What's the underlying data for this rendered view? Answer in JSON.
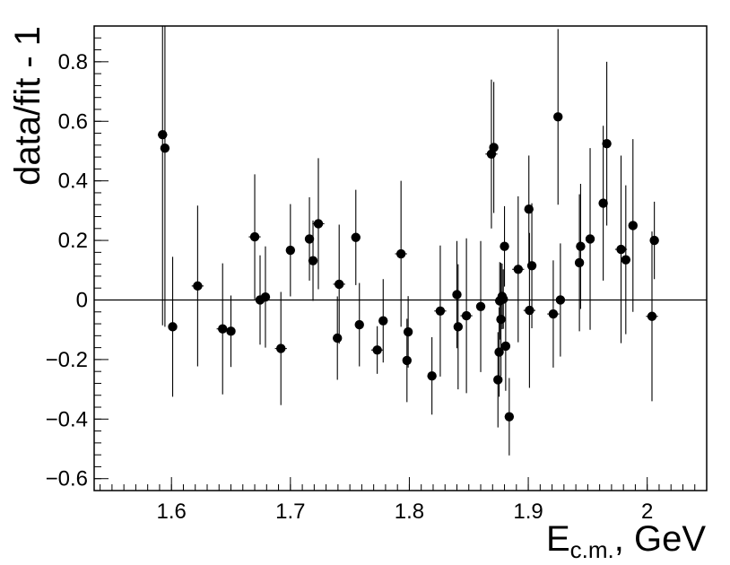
{
  "chart_data": {
    "type": "scatter",
    "title": "",
    "xlabel_main": "E",
    "xlabel_sub": "c.m.",
    "xlabel_rest": ", GeV",
    "ylabel": "data/fit - 1",
    "xlim": [
      1.535,
      2.05
    ],
    "ylim": [
      -0.64,
      0.92
    ],
    "grid": false,
    "reference_line_y": 0,
    "x_ticks": [
      {
        "value": 1.6,
        "label": "1.6"
      },
      {
        "value": 1.7,
        "label": "1.7"
      },
      {
        "value": 1.8,
        "label": "1.8"
      },
      {
        "value": 1.9,
        "label": "1.9"
      },
      {
        "value": 2.0,
        "label": "2"
      }
    ],
    "y_ticks": [
      {
        "value": -0.6,
        "label": "−0.6"
      },
      {
        "value": -0.4,
        "label": "−0.4"
      },
      {
        "value": -0.2,
        "label": "−0.2"
      },
      {
        "value": 0.0,
        "label": "0"
      },
      {
        "value": 0.2,
        "label": "0.2"
      },
      {
        "value": 0.4,
        "label": "0.4"
      },
      {
        "value": 0.6,
        "label": "0.6"
      },
      {
        "value": 0.8,
        "label": "0.8"
      }
    ],
    "x_minor_step": 0.01,
    "y_minor_step": 0.04,
    "points": [
      {
        "x": 1.5925,
        "y": 0.555,
        "yerr": 0.64,
        "xerr": 0.004
      },
      {
        "x": 1.5945,
        "y": 0.51,
        "yerr": 0.6,
        "xerr": 0.0
      },
      {
        "x": 1.601,
        "y": -0.09,
        "yerr": 0.235,
        "xerr": 0.0
      },
      {
        "x": 1.622,
        "y": 0.047,
        "yerr": 0.27,
        "xerr": 0.005
      },
      {
        "x": 1.643,
        "y": -0.097,
        "yerr": 0.22,
        "xerr": 0.005
      },
      {
        "x": 1.65,
        "y": -0.105,
        "yerr": 0.12,
        "xerr": 0.0
      },
      {
        "x": 1.67,
        "y": 0.212,
        "yerr": 0.21,
        "xerr": 0.005
      },
      {
        "x": 1.6745,
        "y": 0.0,
        "yerr": 0.15,
        "xerr": 0.0
      },
      {
        "x": 1.679,
        "y": 0.01,
        "yerr": 0.17,
        "xerr": 0.0
      },
      {
        "x": 1.692,
        "y": -0.163,
        "yerr": 0.19,
        "xerr": 0.005
      },
      {
        "x": 1.7,
        "y": 0.167,
        "yerr": 0.155,
        "xerr": 0.0
      },
      {
        "x": 1.716,
        "y": 0.205,
        "yerr": 0.14,
        "xerr": 0.0
      },
      {
        "x": 1.719,
        "y": 0.132,
        "yerr": 0.135,
        "xerr": 0.0
      },
      {
        "x": 1.7235,
        "y": 0.256,
        "yerr": 0.22,
        "xerr": 0.005
      },
      {
        "x": 1.7395,
        "y": -0.128,
        "yerr": 0.14,
        "xerr": 0.0
      },
      {
        "x": 1.741,
        "y": 0.053,
        "yerr": 0.2,
        "xerr": 0.005
      },
      {
        "x": 1.755,
        "y": 0.21,
        "yerr": 0.16,
        "xerr": 0.0
      },
      {
        "x": 1.758,
        "y": -0.083,
        "yerr": 0.14,
        "xerr": 0.0
      },
      {
        "x": 1.773,
        "y": -0.168,
        "yerr": 0.08,
        "xerr": 0.005
      },
      {
        "x": 1.778,
        "y": -0.07,
        "yerr": 0.14,
        "xerr": 0.0
      },
      {
        "x": 1.793,
        "y": 0.155,
        "yerr": 0.245,
        "xerr": 0.005
      },
      {
        "x": 1.798,
        "y": -0.203,
        "yerr": 0.14,
        "xerr": 0.0
      },
      {
        "x": 1.799,
        "y": -0.107,
        "yerr": 0.12,
        "xerr": 0.0
      },
      {
        "x": 1.819,
        "y": -0.255,
        "yerr": 0.13,
        "xerr": 0.0
      },
      {
        "x": 1.826,
        "y": -0.037,
        "yerr": 0.22,
        "xerr": 0.005
      },
      {
        "x": 1.84,
        "y": 0.018,
        "yerr": 0.18,
        "xerr": 0.0
      },
      {
        "x": 1.841,
        "y": -0.09,
        "yerr": 0.21,
        "xerr": 0.0
      },
      {
        "x": 1.848,
        "y": -0.053,
        "yerr": 0.26,
        "xerr": 0.005
      },
      {
        "x": 1.86,
        "y": -0.022,
        "yerr": 0.22,
        "xerr": 0.0
      },
      {
        "x": 1.869,
        "y": 0.49,
        "yerr": 0.25,
        "xerr": 0.005
      },
      {
        "x": 1.871,
        "y": 0.512,
        "yerr": 0.22,
        "xerr": 0.0
      },
      {
        "x": 1.8745,
        "y": -0.268,
        "yerr": 0.16,
        "xerr": 0.0
      },
      {
        "x": 1.8755,
        "y": -0.175,
        "yerr": 0.15,
        "xerr": 0.0
      },
      {
        "x": 1.876,
        "y": -0.003,
        "yerr": 0.13,
        "xerr": 0.004
      },
      {
        "x": 1.877,
        "y": -0.065,
        "yerr": 0.19,
        "xerr": 0.0
      },
      {
        "x": 1.878,
        "y": 0.012,
        "yerr": 0.11,
        "xerr": 0.0
      },
      {
        "x": 1.879,
        "y": 0.003,
        "yerr": 0.1,
        "xerr": 0.003
      },
      {
        "x": 1.88,
        "y": 0.18,
        "yerr": 0.135,
        "xerr": 0.0
      },
      {
        "x": 1.881,
        "y": -0.155,
        "yerr": 0.15,
        "xerr": 0.0
      },
      {
        "x": 1.884,
        "y": -0.392,
        "yerr": 0.13,
        "xerr": 0.0
      },
      {
        "x": 1.8915,
        "y": 0.103,
        "yerr": 0.245,
        "xerr": 0.005
      },
      {
        "x": 1.9005,
        "y": 0.305,
        "yerr": 0.18,
        "xerr": 0.0
      },
      {
        "x": 1.901,
        "y": -0.035,
        "yerr": 0.26,
        "xerr": 0.005
      },
      {
        "x": 1.903,
        "y": 0.115,
        "yerr": 0.21,
        "xerr": 0.0
      },
      {
        "x": 1.921,
        "y": -0.047,
        "yerr": 0.18,
        "xerr": 0.005
      },
      {
        "x": 1.925,
        "y": 0.615,
        "yerr": 0.295,
        "xerr": 0.0
      },
      {
        "x": 1.927,
        "y": 0.0,
        "yerr": 0.19,
        "xerr": 0.004
      },
      {
        "x": 1.943,
        "y": 0.125,
        "yerr": 0.23,
        "xerr": 0.0
      },
      {
        "x": 1.944,
        "y": 0.18,
        "yerr": 0.21,
        "xerr": 0.0
      },
      {
        "x": 1.952,
        "y": 0.205,
        "yerr": 0.305,
        "xerr": 0.0
      },
      {
        "x": 1.963,
        "y": 0.325,
        "yerr": 0.26,
        "xerr": 0.0
      },
      {
        "x": 1.966,
        "y": 0.525,
        "yerr": 0.275,
        "xerr": 0.0
      },
      {
        "x": 1.978,
        "y": 0.17,
        "yerr": 0.315,
        "xerr": 0.005
      },
      {
        "x": 1.982,
        "y": 0.135,
        "yerr": 0.25,
        "xerr": 0.0
      },
      {
        "x": 1.988,
        "y": 0.25,
        "yerr": 0.29,
        "xerr": 0.0
      },
      {
        "x": 2.004,
        "y": -0.055,
        "yerr": 0.285,
        "xerr": 0.005
      },
      {
        "x": 2.006,
        "y": 0.2,
        "yerr": 0.13,
        "xerr": 0.0
      }
    ]
  }
}
